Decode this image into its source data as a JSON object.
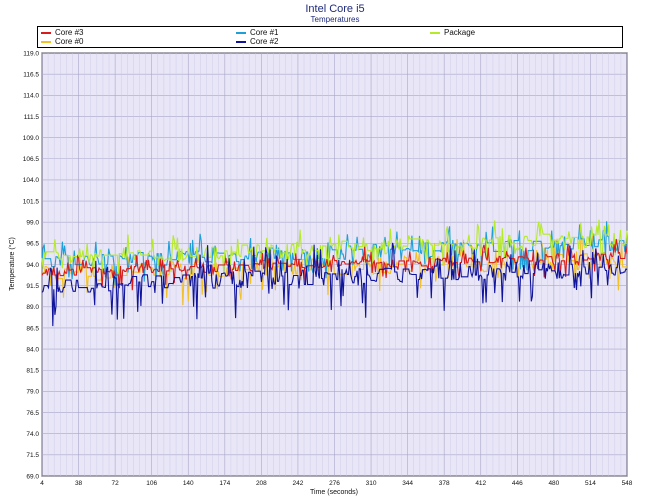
{
  "chart_data": {
    "type": "line",
    "title": "Intel Core i5",
    "subtitle": "Temperatures",
    "xlabel": "Time (seconds)",
    "ylabel": "Temperature (°C)",
    "xlim": [
      4,
      548
    ],
    "ylim": [
      69.0,
      119.0
    ],
    "x_ticks": [
      4,
      38,
      72,
      106,
      140,
      174,
      208,
      242,
      276,
      310,
      344,
      378,
      412,
      446,
      480,
      514,
      548
    ],
    "y_ticks": [
      "119.0",
      "116.5",
      "114.0",
      "111.5",
      "109.0",
      "106.5",
      "104.0",
      "101.5",
      "99.0",
      "96.5",
      "94.0",
      "91.5",
      "89.0",
      "86.5",
      "84.0",
      "81.5",
      "79.0",
      "76.5",
      "74.0",
      "71.5",
      "69.0"
    ],
    "grid": true,
    "legend_position": "top",
    "series": [
      {
        "name": "Core #3",
        "color": "#d81b1b",
        "start": [
          92.5,
          93.5
        ],
        "end": [
          94.5,
          95.5
        ],
        "noise": 1.0
      },
      {
        "name": "Core #0",
        "color": "#f2c128",
        "start": [
          92.0,
          94.0
        ],
        "end": [
          93.5,
          95.5
        ],
        "noise": 1.6
      },
      {
        "name": "Core #1",
        "color": "#1f9fd8",
        "start": [
          93.5,
          95.0
        ],
        "end": [
          95.5,
          97.5
        ],
        "noise": 1.3
      },
      {
        "name": "Core #2",
        "color": "#10149a",
        "start": [
          90.5,
          92.5
        ],
        "end": [
          92.5,
          94.5
        ],
        "noise": 2.2
      },
      {
        "name": "Package",
        "color": "#b5ea2a",
        "start": [
          94.0,
          95.5
        ],
        "end": [
          96.0,
          98.0
        ],
        "noise": 1.4
      }
    ]
  }
}
